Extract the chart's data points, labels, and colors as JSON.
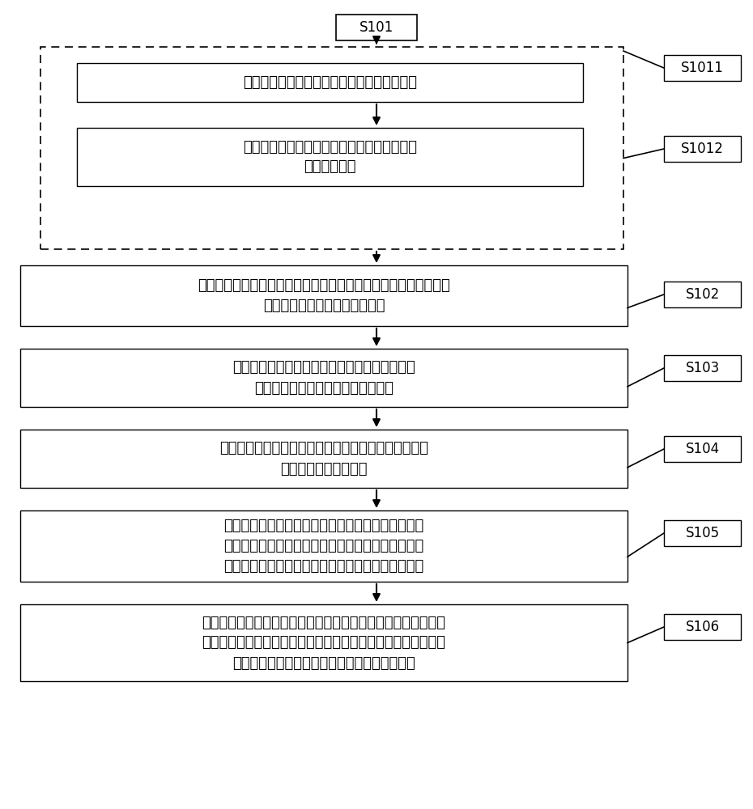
{
  "bg_color": "#ffffff",
  "font_size_main": 13,
  "font_size_label": 12,
  "font_size_step": 12,
  "s101_label": "S101",
  "s1011_label": "S1011",
  "s1012_label": "S1012",
  "s102_label": "S102",
  "s103_label": "S103",
  "s104_label": "S104",
  "s105_label": "S105",
  "s106_label": "S106",
  "box1_text": "通过低通滤波方式去除心电信号中的肌电干扰",
  "box2_text": "通过高通滤波方式去除基线漂移以及工频滤波\n去除工频干扰",
  "box3_text": "对预处理后的心电信号进行心搏定位得到特征心电信号，提取特征\n心电信号的心搏的波形特征参数",
  "box4_text": "对所述特征心电信号进行归一化处理，得到标准\n心电信号，提取标准心电信号的心搏",
  "box5_text": "将所述标准心电信号的心搏与模板心搏进行匹配，提取\n二者的匹配度特征参数",
  "box6_text": "将提取的特征心电信号的心搏的波形特征参数和匹配\n度特征参数作为心搏的特征向量输入到决策树分类器\n中，训练决策树分类器，得到训练后的决策树分类器",
  "box7_text": "将待检测的心电信号对应的特征心电信号的心搏的波形特征参数\n和对应的匹配度特征参数作为心搏的特征向量输入到所述训练后\n的决策树分类器中，输出该心搏类型的分类结果",
  "line_color": "#000000",
  "box_edge_color": "#000000",
  "dashed_box_color": "#000000",
  "text_color": "#000000"
}
